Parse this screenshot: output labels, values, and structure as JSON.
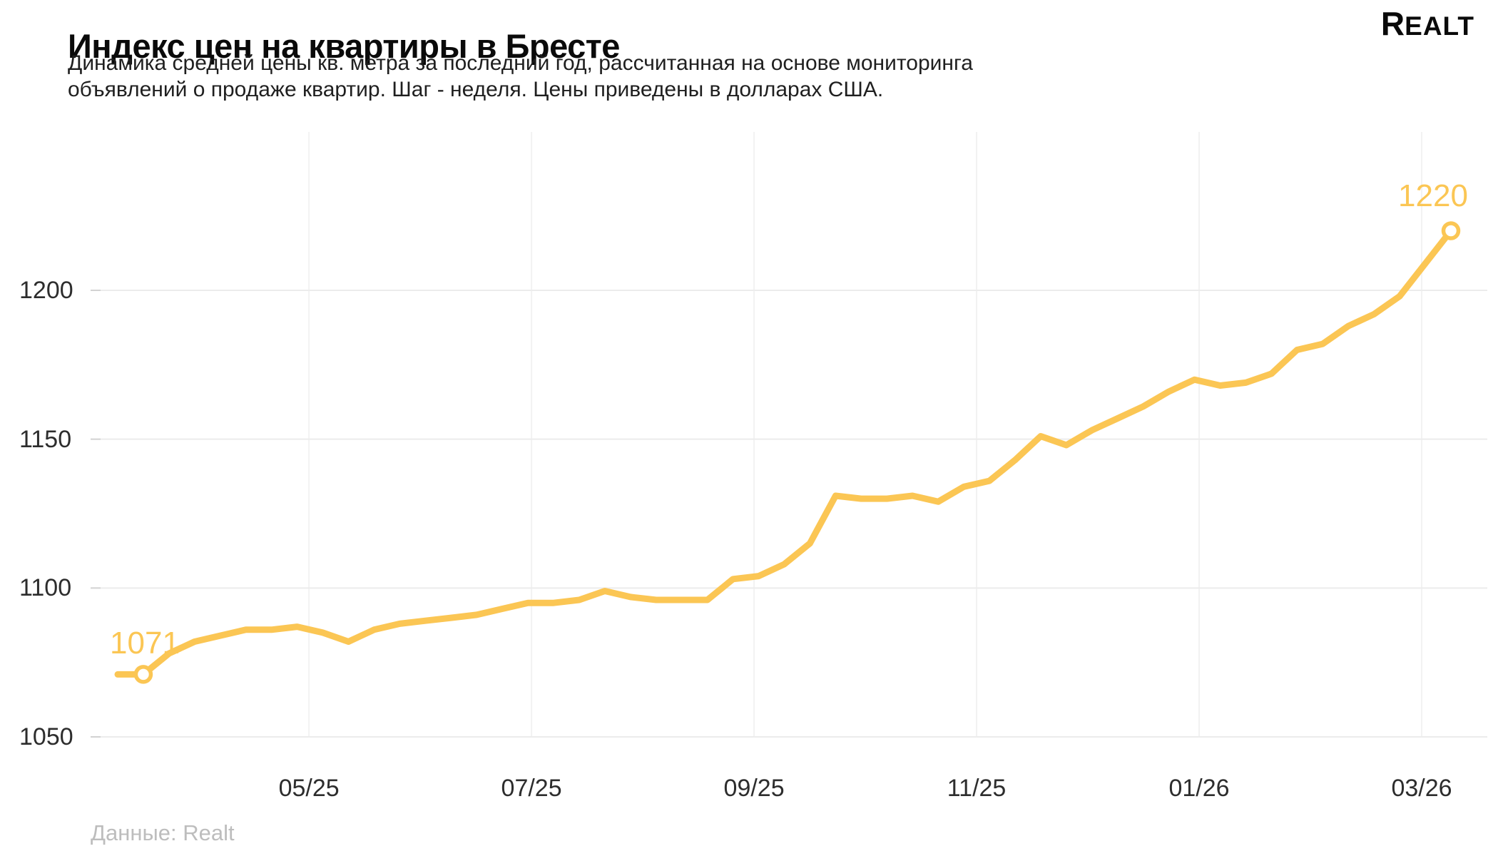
{
  "title": "Индекс цен на квартиры в Бресте",
  "subtitle_line1": "Динамика средней цены кв. метра за последний год, рассчитанная на основе мониторинга",
  "subtitle_line2": "объявлений о продаже квартир. Шаг - неделя. Цены приведены в долларах США.",
  "logo": {
    "r": "R",
    "rest": "ealt"
  },
  "footer": "Данные: Realt",
  "chart_data": {
    "type": "line",
    "title": "Индекс цен на квартиры в Бресте",
    "x_step": "неделя",
    "currency": "USD",
    "x_tick_labels": [
      "05/25",
      "07/25",
      "09/25",
      "11/25",
      "01/26",
      "03/26"
    ],
    "x_tick_positions_weeks": [
      7.46,
      16.14,
      24.82,
      33.5,
      42.18,
      50.86
    ],
    "y_tick_labels": [
      "1200",
      "1150",
      "1100",
      "1050"
    ],
    "y_gridlines": [
      1200,
      1150,
      1100,
      1050
    ],
    "ylim": [
      1040,
      1245
    ],
    "grid": true,
    "legend": false,
    "line_color": "#FBC654",
    "values": [
      1071,
      1071,
      1078,
      1082,
      1084,
      1086,
      1086,
      1087,
      1085,
      1082,
      1086,
      1088,
      1089,
      1090,
      1091,
      1093,
      1095,
      1095,
      1096,
      1099,
      1097,
      1096,
      1096,
      1096,
      1103,
      1104,
      1108,
      1115,
      1131,
      1130,
      1130,
      1131,
      1129,
      1134,
      1136,
      1143,
      1151,
      1148,
      1153,
      1157,
      1161,
      1166,
      1170,
      1168,
      1169,
      1172,
      1180,
      1182,
      1188,
      1192,
      1198,
      1209,
      1220
    ],
    "marker_weeks": [
      1,
      52
    ],
    "start_label": "1071",
    "end_label": "1220"
  }
}
